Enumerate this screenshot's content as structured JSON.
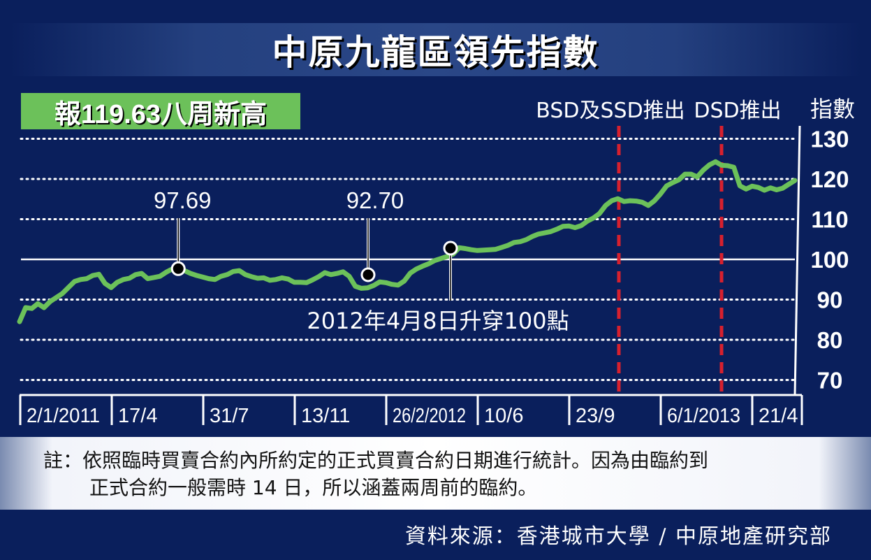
{
  "title": "中原九龍區領先指數",
  "headline": "報119.63八周新高",
  "note": {
    "line1": "註：依照臨時買賣合約內所約定的正式買賣合約日期進行統計。因為由臨約到",
    "line2": "正式合約一般需時 14 日，所以涵蓋兩周前的臨約。"
  },
  "source": "資料來源：香港城市大學 / 中原地產研究部",
  "colors": {
    "background": "#0a1f5c",
    "line": "#6cc15a",
    "policy_line": "#d7202e",
    "headline_bg": "#6cc15a"
  },
  "chart_data": {
    "type": "line",
    "ylabel": "指數",
    "ylim": [
      65,
      132
    ],
    "yticks": [
      70,
      80,
      90,
      100,
      110,
      120,
      130
    ],
    "grid": "dotted horizontal",
    "x_tick_labels": [
      "2/1/2011",
      "17/4",
      "31/7",
      "13/11",
      "26/2/2012",
      "10/6",
      "23/9",
      "6/1/2013",
      "21/4"
    ],
    "series": [
      {
        "values": [
          84.5,
          88,
          87.8,
          89,
          88,
          89.5,
          90.5,
          91.5,
          93,
          94.5,
          95,
          95.2,
          96,
          96.3,
          94,
          93,
          94.3,
          95,
          95.3,
          96.2,
          96.5,
          95.2,
          95.5,
          95.8,
          96.8,
          97.6,
          97.69,
          97.2,
          96.5,
          96,
          95.6,
          95.2,
          95,
          95.8,
          96.2,
          97,
          97.2,
          96.2,
          95.7,
          95.3,
          95.4,
          94.8,
          95,
          95.4,
          95.1,
          94.3,
          94.3,
          94.2,
          94.9,
          95.7,
          96.7,
          96.2,
          96.5,
          96.9,
          95.8,
          93.3,
          92.8,
          92.9,
          93.5,
          94.4,
          94.2,
          93.8,
          93.6,
          94.6,
          96.6,
          97.6,
          98.3,
          98.9,
          99.7,
          100.2,
          100.7,
          101.3,
          102.9,
          102.7,
          102.4,
          102.2,
          102.3,
          102.4,
          102.5,
          103,
          103.5,
          104.2,
          104.4,
          104.9,
          105.7,
          106.3,
          106.6,
          106.9,
          107.5,
          108.2,
          108.3,
          107.9,
          108.4,
          109.5,
          110.3,
          111.4,
          113.4,
          114.6,
          115.1,
          114.4,
          114.6,
          114.5,
          114.2,
          113.4,
          114.6,
          116.3,
          118.3,
          119.1,
          119.8,
          121.2,
          121.2,
          120.5,
          122.2,
          123.5,
          124.3,
          123.4,
          123.3,
          122.9,
          118.3,
          117.5,
          118.2,
          117.9,
          117.2,
          117.8,
          117.3,
          117.7,
          118.7,
          119.63
        ]
      }
    ],
    "annotations": [
      {
        "label": "97.69",
        "value": 97.69
      },
      {
        "label": "92.70",
        "value": 92.7
      },
      {
        "label": "2012年4月8日升穿100點",
        "value": 100
      }
    ],
    "policy_events": [
      {
        "label": "BSD及SSD推出"
      },
      {
        "label": "DSD推出"
      }
    ],
    "reference_line": 100
  }
}
